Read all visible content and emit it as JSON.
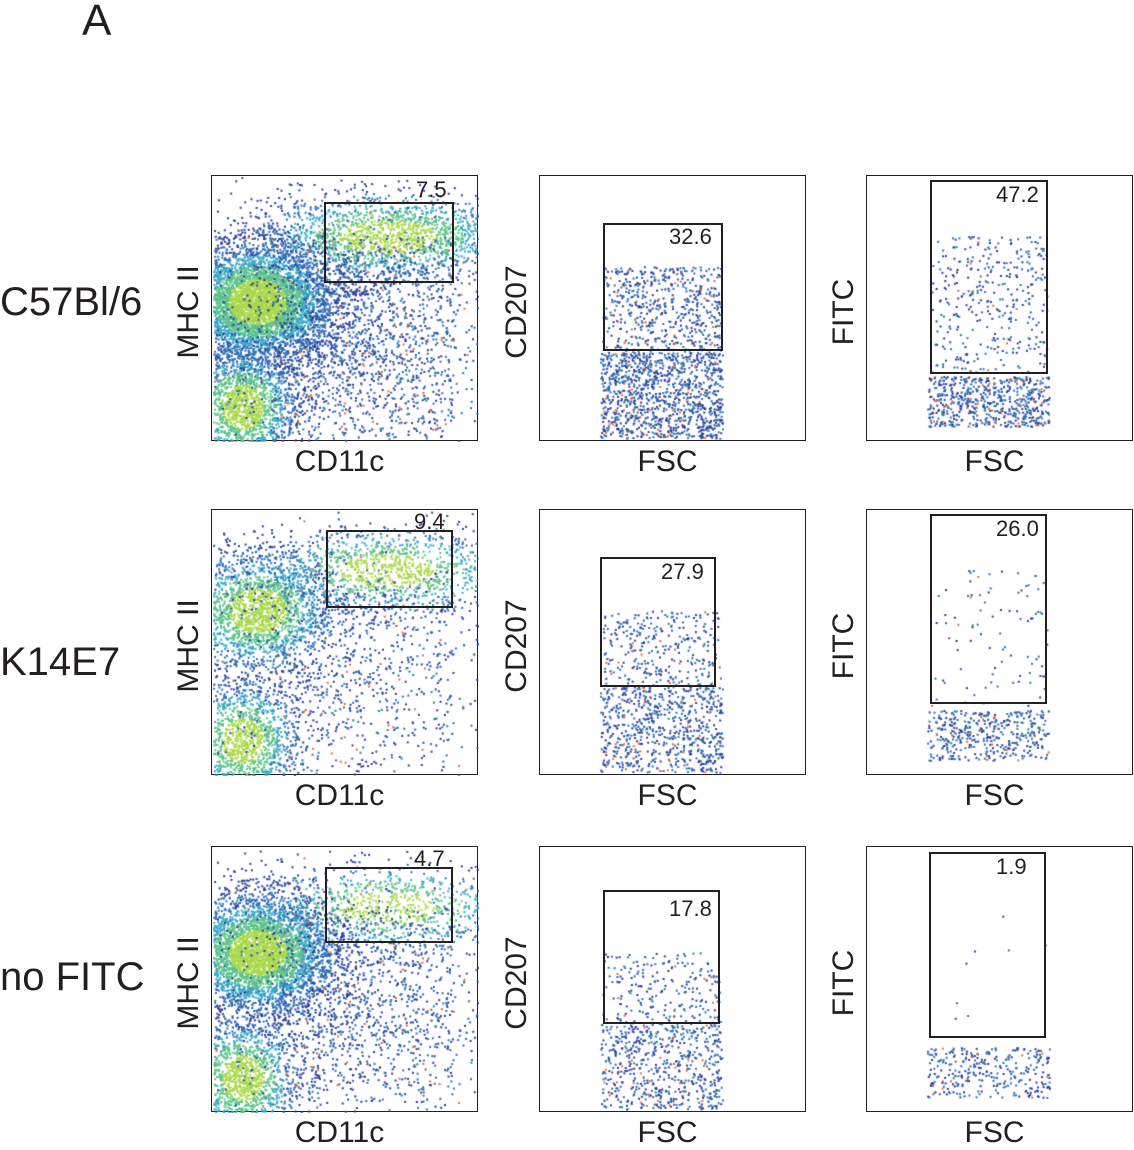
{
  "chart_data": {
    "type": "scatter",
    "panel_letter": "A",
    "rows": [
      {
        "label": "C57Bl/6",
        "plots": [
          {
            "xlabel": "CD11c",
            "ylabel": "MHC II",
            "gate_percent": "7.5"
          },
          {
            "xlabel": "FSC",
            "ylabel": "CD207",
            "gate_percent": "32.6"
          },
          {
            "xlabel": "FSC",
            "ylabel": "FITC",
            "gate_percent": "47.2"
          }
        ]
      },
      {
        "label": "K14E7",
        "plots": [
          {
            "xlabel": "CD11c",
            "ylabel": "MHC II",
            "gate_percent": "9.4"
          },
          {
            "xlabel": "FSC",
            "ylabel": "CD207",
            "gate_percent": "27.9"
          },
          {
            "xlabel": "FSC",
            "ylabel": "FITC",
            "gate_percent": "26.0"
          }
        ]
      },
      {
        "label": "no FITC",
        "plots": [
          {
            "xlabel": "CD11c",
            "ylabel": "MHC II",
            "gate_percent": "4.7"
          },
          {
            "xlabel": "FSC",
            "ylabel": "CD207",
            "gate_percent": "17.8"
          },
          {
            "xlabel": "FSC",
            "ylabel": "FITC",
            "gate_percent": "1.9"
          }
        ]
      }
    ],
    "density_colors": [
      "#2b3f99",
      "#2e6fb8",
      "#3aa7c7",
      "#5cc28a",
      "#a9d84a",
      "#e86a3a"
    ]
  }
}
